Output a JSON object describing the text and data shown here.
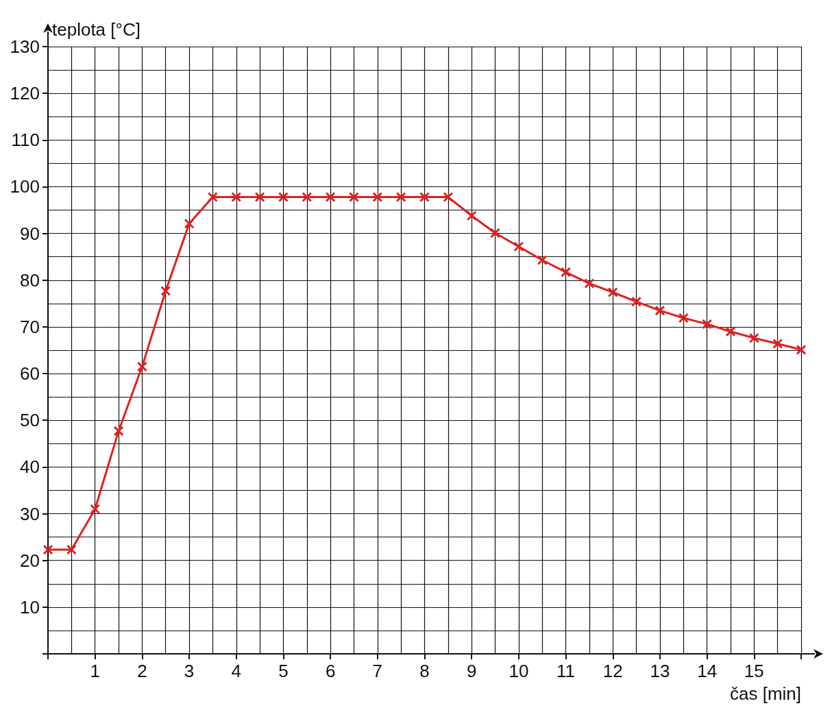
{
  "chart_data": {
    "type": "line",
    "xlabel": "čas [min]",
    "ylabel": "teplota [°C]",
    "x": [
      0,
      0.5,
      1,
      1.5,
      2,
      2.5,
      3,
      3.5,
      4,
      4.5,
      5,
      5.5,
      6,
      6.5,
      7,
      7.5,
      8,
      8.5,
      9,
      9.5,
      10,
      10.5,
      11,
      11.5,
      12,
      12.5,
      13,
      13.5,
      14,
      14.5,
      15,
      15.5,
      16
    ],
    "series": [
      {
        "color": "#e02020",
        "values": [
          22.3,
          22.3,
          31.0,
          47.7,
          61.5,
          77.7,
          92.1,
          97.8,
          97.8,
          97.8,
          97.8,
          97.8,
          97.8,
          97.8,
          97.8,
          97.8,
          97.8,
          97.8,
          93.8,
          90.1,
          87.2,
          84.3,
          81.7,
          79.3,
          77.4,
          75.4,
          73.5,
          71.9,
          70.6,
          69.0,
          67.6,
          66.4,
          65.1
        ]
      }
    ],
    "xlim": [
      0,
      16
    ],
    "ylim": [
      0,
      130
    ],
    "xticks": [
      {
        "value": 0,
        "label": null
      },
      1,
      2,
      3,
      4,
      5,
      6,
      7,
      8,
      9,
      10,
      11,
      12,
      13,
      14,
      15,
      {
        "value": 16,
        "label": null
      }
    ],
    "yticks": [
      {
        "value": 0,
        "label": null
      },
      10,
      20,
      30,
      40,
      50,
      60,
      70,
      80,
      90,
      100,
      110,
      120,
      130
    ],
    "grid": true,
    "marker": "cross",
    "line_style": "solid"
  }
}
